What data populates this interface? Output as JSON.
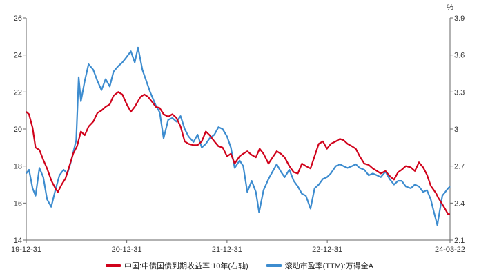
{
  "chart_data": {
    "type": "line",
    "title": "",
    "xlabel": "",
    "ylabel": "",
    "y_right_unit": "%",
    "x_range": [
      "2019-12-31",
      "2024-03-22"
    ],
    "x_ticks": [
      "19-12-31",
      "20-12-31",
      "21-12-31",
      "22-12-31",
      "24-03-22"
    ],
    "y_left": {
      "range": [
        14,
        26
      ],
      "ticks": [
        "14",
        "16",
        "18",
        "20",
        "22",
        "24",
        "26"
      ]
    },
    "y_right": {
      "range": [
        2.1,
        3.9
      ],
      "ticks": [
        "2.1",
        "2.4",
        "2.7",
        "3",
        "3.3",
        "3.6",
        "3.9"
      ]
    },
    "grid": false,
    "legend_position": "bottom",
    "series": [
      {
        "name": "中国:中债国债到期收益率:10年(右轴)",
        "axis": "right",
        "color": "#d0021b",
        "points": [
          [
            "2019-12-31",
            3.14
          ],
          [
            "2020-01-10",
            3.12
          ],
          [
            "2020-01-23",
            3.01
          ],
          [
            "2020-02-03",
            2.85
          ],
          [
            "2020-02-17",
            2.83
          ],
          [
            "2020-03-02",
            2.75
          ],
          [
            "2020-03-16",
            2.68
          ],
          [
            "2020-04-01",
            2.58
          ],
          [
            "2020-04-15",
            2.52
          ],
          [
            "2020-04-24",
            2.49
          ],
          [
            "2020-05-08",
            2.55
          ],
          [
            "2020-05-22",
            2.6
          ],
          [
            "2020-06-05",
            2.7
          ],
          [
            "2020-06-19",
            2.8
          ],
          [
            "2020-07-03",
            2.86
          ],
          [
            "2020-07-17",
            2.98
          ],
          [
            "2020-07-31",
            2.95
          ],
          [
            "2020-08-14",
            3.02
          ],
          [
            "2020-08-31",
            3.06
          ],
          [
            "2020-09-15",
            3.13
          ],
          [
            "2020-09-30",
            3.15
          ],
          [
            "2020-10-15",
            3.18
          ],
          [
            "2020-10-30",
            3.2
          ],
          [
            "2020-11-13",
            3.27
          ],
          [
            "2020-11-30",
            3.3
          ],
          [
            "2020-12-15",
            3.28
          ],
          [
            "2020-12-31",
            3.2
          ],
          [
            "2021-01-15",
            3.14
          ],
          [
            "2021-01-29",
            3.18
          ],
          [
            "2021-02-19",
            3.26
          ],
          [
            "2021-03-05",
            3.28
          ],
          [
            "2021-03-19",
            3.26
          ],
          [
            "2021-04-02",
            3.22
          ],
          [
            "2021-04-16",
            3.18
          ],
          [
            "2021-04-30",
            3.17
          ],
          [
            "2021-05-14",
            3.12
          ],
          [
            "2021-05-31",
            3.1
          ],
          [
            "2021-06-15",
            3.12
          ],
          [
            "2021-06-30",
            3.09
          ],
          [
            "2021-07-15",
            3.02
          ],
          [
            "2021-07-30",
            2.9
          ],
          [
            "2021-08-13",
            2.88
          ],
          [
            "2021-08-31",
            2.87
          ],
          [
            "2021-09-15",
            2.87
          ],
          [
            "2021-09-30",
            2.9
          ],
          [
            "2021-10-15",
            2.98
          ],
          [
            "2021-10-29",
            2.95
          ],
          [
            "2021-11-15",
            2.9
          ],
          [
            "2021-11-30",
            2.86
          ],
          [
            "2021-12-15",
            2.85
          ],
          [
            "2021-12-31",
            2.78
          ],
          [
            "2022-01-14",
            2.8
          ],
          [
            "2022-01-28",
            2.72
          ],
          [
            "2022-02-15",
            2.78
          ],
          [
            "2022-02-28",
            2.8
          ],
          [
            "2022-03-15",
            2.82
          ],
          [
            "2022-03-31",
            2.79
          ],
          [
            "2022-04-15",
            2.77
          ],
          [
            "2022-04-29",
            2.84
          ],
          [
            "2022-05-13",
            2.8
          ],
          [
            "2022-05-31",
            2.72
          ],
          [
            "2022-06-15",
            2.77
          ],
          [
            "2022-06-30",
            2.82
          ],
          [
            "2022-07-15",
            2.8
          ],
          [
            "2022-07-29",
            2.77
          ],
          [
            "2022-08-15",
            2.7
          ],
          [
            "2022-08-31",
            2.65
          ],
          [
            "2022-09-15",
            2.64
          ],
          [
            "2022-09-30",
            2.72
          ],
          [
            "2022-10-14",
            2.7
          ],
          [
            "2022-10-31",
            2.68
          ],
          [
            "2022-11-15",
            2.78
          ],
          [
            "2022-11-30",
            2.88
          ],
          [
            "2022-12-15",
            2.9
          ],
          [
            "2022-12-30",
            2.84
          ],
          [
            "2023-01-13",
            2.88
          ],
          [
            "2023-01-31",
            2.9
          ],
          [
            "2023-02-15",
            2.92
          ],
          [
            "2023-02-28",
            2.91
          ],
          [
            "2023-03-15",
            2.88
          ],
          [
            "2023-03-31",
            2.86
          ],
          [
            "2023-04-14",
            2.84
          ],
          [
            "2023-04-28",
            2.78
          ],
          [
            "2023-05-15",
            2.72
          ],
          [
            "2023-05-31",
            2.71
          ],
          [
            "2023-06-15",
            2.68
          ],
          [
            "2023-06-30",
            2.66
          ],
          [
            "2023-07-14",
            2.64
          ],
          [
            "2023-07-31",
            2.66
          ],
          [
            "2023-08-15",
            2.62
          ],
          [
            "2023-08-31",
            2.59
          ],
          [
            "2023-09-15",
            2.65
          ],
          [
            "2023-09-28",
            2.67
          ],
          [
            "2023-10-13",
            2.7
          ],
          [
            "2023-10-31",
            2.69
          ],
          [
            "2023-11-15",
            2.66
          ],
          [
            "2023-11-30",
            2.73
          ],
          [
            "2023-12-15",
            2.69
          ],
          [
            "2023-12-29",
            2.63
          ],
          [
            "2024-01-12",
            2.54
          ],
          [
            "2024-01-31",
            2.48
          ],
          [
            "2024-02-09",
            2.44
          ],
          [
            "2024-02-23",
            2.39
          ],
          [
            "2024-03-05",
            2.35
          ],
          [
            "2024-03-15",
            2.31
          ],
          [
            "2024-03-22",
            2.31
          ]
        ]
      },
      {
        "name": "滚动市盈率(TTM):万得全A",
        "axis": "left",
        "color": "#3d8ccf",
        "points": [
          [
            "2019-12-31",
            17.6
          ],
          [
            "2020-01-10",
            17.8
          ],
          [
            "2020-01-23",
            16.8
          ],
          [
            "2020-02-03",
            16.4
          ],
          [
            "2020-02-17",
            17.9
          ],
          [
            "2020-03-02",
            17.4
          ],
          [
            "2020-03-16",
            16.2
          ],
          [
            "2020-03-31",
            15.8
          ],
          [
            "2020-04-15",
            16.7
          ],
          [
            "2020-04-30",
            17.5
          ],
          [
            "2020-05-15",
            17.8
          ],
          [
            "2020-05-29",
            17.6
          ],
          [
            "2020-06-12",
            18.3
          ],
          [
            "2020-06-30",
            19.4
          ],
          [
            "2020-07-09",
            22.8
          ],
          [
            "2020-07-17",
            21.5
          ],
          [
            "2020-07-31",
            22.6
          ],
          [
            "2020-08-14",
            23.5
          ],
          [
            "2020-08-31",
            23.2
          ],
          [
            "2020-09-15",
            22.6
          ],
          [
            "2020-09-30",
            22.1
          ],
          [
            "2020-10-15",
            22.7
          ],
          [
            "2020-10-30",
            22.3
          ],
          [
            "2020-11-13",
            23.1
          ],
          [
            "2020-11-30",
            23.4
          ],
          [
            "2020-12-15",
            23.6
          ],
          [
            "2020-12-31",
            23.9
          ],
          [
            "2021-01-15",
            24.2
          ],
          [
            "2021-01-29",
            23.6
          ],
          [
            "2021-02-10",
            24.4
          ],
          [
            "2021-02-26",
            23.2
          ],
          [
            "2021-03-12",
            22.6
          ],
          [
            "2021-03-26",
            22.0
          ],
          [
            "2021-04-15",
            21.3
          ],
          [
            "2021-04-30",
            20.9
          ],
          [
            "2021-05-14",
            19.5
          ],
          [
            "2021-05-31",
            20.5
          ],
          [
            "2021-06-15",
            20.6
          ],
          [
            "2021-06-30",
            20.4
          ],
          [
            "2021-07-15",
            20.7
          ],
          [
            "2021-07-30",
            20.0
          ],
          [
            "2021-08-13",
            19.6
          ],
          [
            "2021-08-31",
            19.3
          ],
          [
            "2021-09-15",
            19.7
          ],
          [
            "2021-09-30",
            19.0
          ],
          [
            "2021-10-15",
            19.2
          ],
          [
            "2021-10-29",
            19.5
          ],
          [
            "2021-11-15",
            19.7
          ],
          [
            "2021-11-30",
            20.1
          ],
          [
            "2021-12-15",
            20.0
          ],
          [
            "2021-12-31",
            19.6
          ],
          [
            "2022-01-14",
            19.0
          ],
          [
            "2022-01-28",
            17.9
          ],
          [
            "2022-02-15",
            18.3
          ],
          [
            "2022-02-28",
            18.0
          ],
          [
            "2022-03-15",
            16.6
          ],
          [
            "2022-03-31",
            17.2
          ],
          [
            "2022-04-15",
            16.6
          ],
          [
            "2022-04-27",
            15.5
          ],
          [
            "2022-05-13",
            16.7
          ],
          [
            "2022-05-31",
            17.3
          ],
          [
            "2022-06-15",
            17.7
          ],
          [
            "2022-06-30",
            18.1
          ],
          [
            "2022-07-15",
            17.7
          ],
          [
            "2022-07-29",
            17.4
          ],
          [
            "2022-08-15",
            17.8
          ],
          [
            "2022-08-31",
            17.2
          ],
          [
            "2022-09-15",
            16.9
          ],
          [
            "2022-09-30",
            16.5
          ],
          [
            "2022-10-14",
            16.4
          ],
          [
            "2022-10-31",
            15.7
          ],
          [
            "2022-11-15",
            16.8
          ],
          [
            "2022-11-30",
            17.0
          ],
          [
            "2022-12-15",
            17.3
          ],
          [
            "2022-12-30",
            17.4
          ],
          [
            "2023-01-13",
            17.6
          ],
          [
            "2023-01-31",
            18.0
          ],
          [
            "2023-02-15",
            18.1
          ],
          [
            "2023-02-28",
            18.0
          ],
          [
            "2023-03-15",
            17.9
          ],
          [
            "2023-03-31",
            18.0
          ],
          [
            "2023-04-14",
            18.1
          ],
          [
            "2023-04-28",
            17.9
          ],
          [
            "2023-05-15",
            17.8
          ],
          [
            "2023-05-31",
            17.5
          ],
          [
            "2023-06-15",
            17.6
          ],
          [
            "2023-06-30",
            17.5
          ],
          [
            "2023-07-14",
            17.4
          ],
          [
            "2023-07-31",
            17.7
          ],
          [
            "2023-08-15",
            17.3
          ],
          [
            "2023-08-31",
            17.0
          ],
          [
            "2023-09-15",
            17.2
          ],
          [
            "2023-09-28",
            17.2
          ],
          [
            "2023-10-13",
            16.9
          ],
          [
            "2023-10-31",
            16.8
          ],
          [
            "2023-11-15",
            17.0
          ],
          [
            "2023-11-30",
            16.9
          ],
          [
            "2023-12-15",
            16.6
          ],
          [
            "2023-12-29",
            16.7
          ],
          [
            "2024-01-12",
            16.2
          ],
          [
            "2024-01-22",
            15.6
          ],
          [
            "2024-02-05",
            14.8
          ],
          [
            "2024-02-08",
            15.1
          ],
          [
            "2024-02-23",
            16.4
          ],
          [
            "2024-03-05",
            16.6
          ],
          [
            "2024-03-15",
            16.8
          ],
          [
            "2024-03-22",
            16.9
          ]
        ]
      }
    ]
  }
}
